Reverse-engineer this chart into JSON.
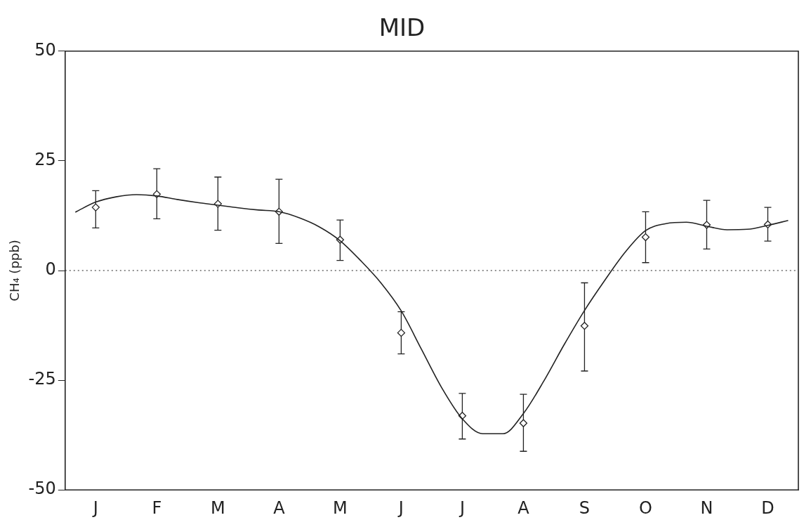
{
  "chart_data": {
    "type": "scatter",
    "title": "MID",
    "ylabel": "CH₄ (ppb)",
    "categories": [
      null,
      "J",
      null,
      null,
      "F",
      null,
      null,
      "M",
      null,
      null,
      "A",
      null,
      null,
      "M",
      null,
      null,
      "J",
      null,
      null,
      "J",
      null,
      null,
      "A",
      null,
      null,
      "S",
      null,
      null,
      "O",
      null,
      null,
      "N",
      null,
      null,
      "D",
      null
    ],
    "ylim": [
      -50,
      50
    ],
    "yticks": [
      -50,
      -25,
      0,
      25,
      50
    ],
    "grid": false,
    "legend": false,
    "ref_lines": [
      {
        "axis": "y",
        "value": 0,
        "line_style": "dotted",
        "color": "#222222"
      }
    ],
    "series": [
      {
        "type": "line",
        "marker": "none",
        "line_style": "solid",
        "color": "#222222",
        "values": [
          13.3,
          15.6,
          16.8,
          17.3,
          17.0,
          16.2,
          15.5,
          14.9,
          14.3,
          13.8,
          13.4,
          12.0,
          9.9,
          6.8,
          2.3,
          -2.8,
          -9.2,
          -18.0,
          -26.8,
          -33.8,
          -37.2,
          -37.2,
          -32.6,
          -25.2,
          -16.9,
          -9.1,
          -2.2,
          4.2,
          9.1,
          10.7,
          11.0,
          10.1,
          9.3,
          9.4,
          10.3,
          11.4
        ]
      },
      {
        "type": "scatter",
        "marker": "diamond",
        "color": "#222222",
        "values": [
          null,
          14.4,
          null,
          null,
          17.4,
          null,
          null,
          15.2,
          null,
          null,
          13.4,
          null,
          null,
          7.0,
          null,
          null,
          -14.2,
          null,
          null,
          -33.1,
          null,
          null,
          -34.8,
          null,
          null,
          -12.6,
          null,
          null,
          7.6,
          null,
          null,
          10.4,
          null,
          null,
          10.5,
          null
        ],
        "errors": [
          null,
          [
            9.7,
            18.2
          ],
          null,
          null,
          [
            11.8,
            23.2
          ],
          null,
          null,
          [
            9.2,
            21.3
          ],
          null,
          null,
          [
            6.2,
            20.8
          ],
          null,
          null,
          [
            2.3,
            11.5
          ],
          null,
          null,
          [
            -19.0,
            -9.4
          ],
          null,
          null,
          [
            -38.4,
            -28.0
          ],
          null,
          null,
          [
            -41.2,
            -28.2
          ],
          null,
          null,
          [
            -22.9,
            -2.8
          ],
          null,
          null,
          [
            1.8,
            13.4
          ],
          null,
          null,
          [
            4.9,
            16.0
          ],
          null,
          null,
          [
            6.7,
            14.4
          ],
          null
        ]
      }
    ]
  }
}
